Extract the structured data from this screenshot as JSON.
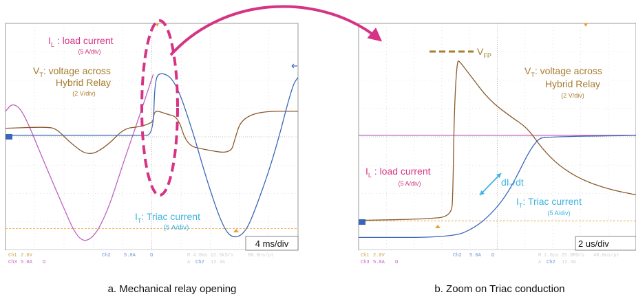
{
  "colors": {
    "load_current": "#c060c0",
    "voltage": "#8b5a2b",
    "triac": "#3a66b8",
    "label_pink": "#d63384",
    "label_brown": "#a67c2e",
    "label_cyan": "#3fb4e0",
    "dashed_ellipse": "#d63384",
    "arrow": "#d63384"
  },
  "chart_data": [
    {
      "type": "line",
      "caption": "a. Mechanical relay opening",
      "timebase": "4 ms/div",
      "annotations": {
        "load_current": {
          "prefix": "I",
          "sub": "L",
          "rest": " : load current",
          "scale": "(5 A/div)"
        },
        "voltage": {
          "prefix": "V",
          "sub": "T",
          "rest": ": voltage across",
          "line2": "Hybrid Relay",
          "scale": "(2 V/div)"
        },
        "triac": {
          "prefix": "I",
          "sub": "T",
          "rest": ": Triac current",
          "scale": "(5 A/div)"
        }
      },
      "scope_footer": {
        "row1": [
          "Ch1",
          "2.0V",
          "Ch2",
          "5.0A",
          "Ω",
          "M 4.0ms 12.5kS/s",
          "80.0ns/pt"
        ],
        "row2": [
          "Ch3",
          "5.0A",
          "Ω",
          "A",
          "Ch2",
          "12.3A"
        ]
      },
      "x_divisions": 10,
      "y_divisions": 8,
      "series": [
        {
          "key": "load_current",
          "points": [
            [
              0,
              0.9
            ],
            [
              0.25,
              1.2
            ],
            [
              0.6,
              0.9
            ],
            [
              1.2,
              -0.6
            ],
            [
              1.9,
              -2.3
            ],
            [
              2.5,
              -3.7
            ],
            [
              3.0,
              -3.6
            ],
            [
              3.5,
              -2.6
            ],
            [
              4.0,
              -1.0
            ],
            [
              4.6,
              0.8
            ],
            [
              5.05,
              2.2
            ]
          ]
        },
        {
          "key": "voltage",
          "points": [
            [
              0,
              0.3
            ],
            [
              1.4,
              0.35
            ],
            [
              1.75,
              0.28
            ],
            [
              2.2,
              -0.2
            ],
            [
              2.85,
              -0.7
            ],
            [
              3.5,
              -0.3
            ],
            [
              4.05,
              0.3
            ],
            [
              4.6,
              0.35
            ],
            [
              5.0,
              0.5
            ],
            [
              5.05,
              0.6
            ],
            [
              5.1,
              0.95
            ],
            [
              5.5,
              0.8
            ],
            [
              5.9,
              0.7
            ],
            [
              6.2,
              -0.3
            ],
            [
              6.8,
              -0.45
            ],
            [
              7.7,
              -0.6
            ],
            [
              7.85,
              -0.05
            ],
            [
              8.05,
              0.6
            ],
            [
              8.7,
              0.9
            ],
            [
              10,
              0.9
            ]
          ]
        },
        {
          "key": "triac",
          "points": [
            [
              0,
              0.05
            ],
            [
              4.6,
              0.05
            ],
            [
              5.05,
              0.05
            ],
            [
              5.1,
              2.0
            ],
            [
              5.3,
              2.3
            ],
            [
              5.8,
              2.0
            ],
            [
              6.4,
              0.2
            ],
            [
              6.9,
              -1.6
            ],
            [
              7.4,
              -3.1
            ],
            [
              7.75,
              -3.6
            ],
            [
              8.2,
              -3.4
            ],
            [
              8.6,
              -2.4
            ],
            [
              9.2,
              -0.6
            ],
            [
              9.8,
              1.8
            ],
            [
              10,
              2.1
            ]
          ]
        }
      ]
    },
    {
      "type": "line",
      "caption": "b. Zoom on Triac conduction",
      "timebase": "2 us/div",
      "annotations": {
        "vfp": {
          "prefix": "V",
          "sub": "FP"
        },
        "voltage": {
          "prefix": "V",
          "sub": "T",
          "rest": ": voltage across",
          "line2": "Hybrid Relay",
          "scale": "(2 V/div)"
        },
        "load_current": {
          "prefix": "I",
          "sub": "L",
          "rest": " : load current",
          "scale": "(5 A/div)"
        },
        "slope": {
          "prefix": "dI",
          "sub": "T",
          "rest": "/dt"
        },
        "triac": {
          "prefix": "I",
          "sub": "T",
          "rest": ": Triac current",
          "scale": "(5 A/div)"
        }
      },
      "scope_footer": {
        "row1": [
          "Ch1",
          "2.0V",
          "Ch2",
          "5.0A",
          "Ω",
          "M 2.0μs 25.0MS/s",
          "40.0ns/pt"
        ],
        "row2": [
          "Ch3",
          "5.0A",
          "Ω",
          "A",
          "Ch2",
          "12.3A"
        ]
      },
      "x_divisions": 10,
      "y_divisions": 8,
      "series": [
        {
          "key": "load_current",
          "points": [
            [
              0,
              0.05
            ],
            [
              10,
              0.05
            ]
          ]
        },
        {
          "key": "voltage",
          "points": [
            [
              0,
              -2.95
            ],
            [
              2.5,
              -2.9
            ],
            [
              3.35,
              -2.8
            ],
            [
              3.4,
              -2.0
            ],
            [
              3.45,
              1.0
            ],
            [
              3.55,
              2.7
            ],
            [
              3.65,
              2.65
            ],
            [
              4.0,
              2.2
            ],
            [
              4.7,
              1.3
            ],
            [
              5.5,
              0.7
            ],
            [
              6.1,
              0.3
            ],
            [
              6.6,
              -0.4
            ],
            [
              7.2,
              -1.0
            ],
            [
              8.0,
              -1.5
            ],
            [
              9.0,
              -1.85
            ],
            [
              10,
              -2.05
            ]
          ]
        },
        {
          "key": "triac",
          "points": [
            [
              0,
              -3.55
            ],
            [
              3.4,
              -3.55
            ],
            [
              4.2,
              -3.2
            ],
            [
              4.8,
              -2.7
            ],
            [
              5.3,
              -2.1
            ],
            [
              5.7,
              -1.4
            ],
            [
              6.1,
              -0.6
            ],
            [
              6.45,
              -0.1
            ],
            [
              6.7,
              0
            ],
            [
              10,
              0.05
            ]
          ]
        }
      ]
    }
  ]
}
